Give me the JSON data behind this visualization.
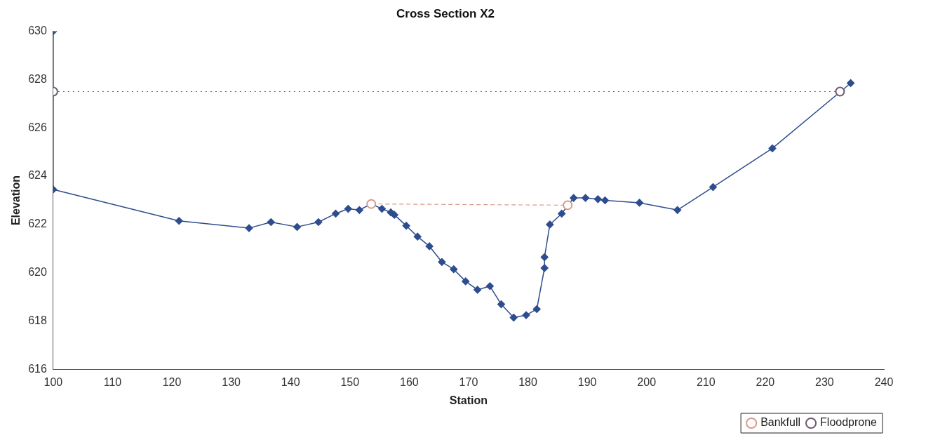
{
  "chart_data": {
    "type": "line",
    "title": "Cross Section X2",
    "xlabel": "Station",
    "ylabel": "Elevation",
    "xlim": [
      100,
      240
    ],
    "xticks": [
      100,
      110,
      120,
      130,
      140,
      150,
      160,
      170,
      180,
      190,
      200,
      210,
      220,
      230,
      240
    ],
    "ylim": [
      616,
      630
    ],
    "yticks": [
      616,
      618,
      620,
      622,
      624,
      626,
      628,
      630
    ],
    "grid": false,
    "legend": "bottom right",
    "series": [
      {
        "color": "#2e4d8e",
        "marker": "diamond",
        "line_style": "solid",
        "x": [
          100,
          100,
          121.2,
          133.0,
          136.7,
          141.1,
          144.7,
          147.6,
          149.7,
          151.6,
          153.6,
          155.4,
          156.9,
          157.5,
          159.5,
          161.4,
          163.4,
          165.5,
          167.5,
          169.5,
          171.5,
          173.6,
          175.5,
          177.6,
          179.7,
          181.5,
          182.8,
          182.8,
          183.7,
          185.7,
          187.7,
          189.7,
          191.8,
          193.0,
          198.8,
          205.2,
          211.2,
          221.2,
          234.4
        ],
        "values": [
          630,
          623.45,
          622.15,
          621.85,
          622.1,
          621.9,
          622.1,
          622.45,
          622.65,
          622.6,
          622.85,
          622.65,
          622.5,
          622.4,
          621.95,
          621.5,
          621.1,
          620.45,
          620.15,
          619.65,
          619.3,
          619.45,
          618.7,
          618.15,
          618.25,
          618.5,
          620.2,
          620.65,
          622.0,
          622.45,
          623.1,
          623.1,
          623.05,
          623.0,
          622.9,
          622.6,
          623.55,
          625.15,
          627.85
        ]
      },
      {
        "name": "Bankfull",
        "color": "#d99a88",
        "marker": "circle",
        "line_style": "dashed",
        "x": [
          153.6,
          186.7
        ],
        "values": [
          622.85,
          622.8
        ]
      },
      {
        "name": "Floodprone",
        "color": "#6e5a6e",
        "marker": "circle",
        "line_style": "dotted",
        "x": [
          100,
          232.6
        ],
        "values": [
          627.5,
          627.5
        ]
      }
    ]
  }
}
